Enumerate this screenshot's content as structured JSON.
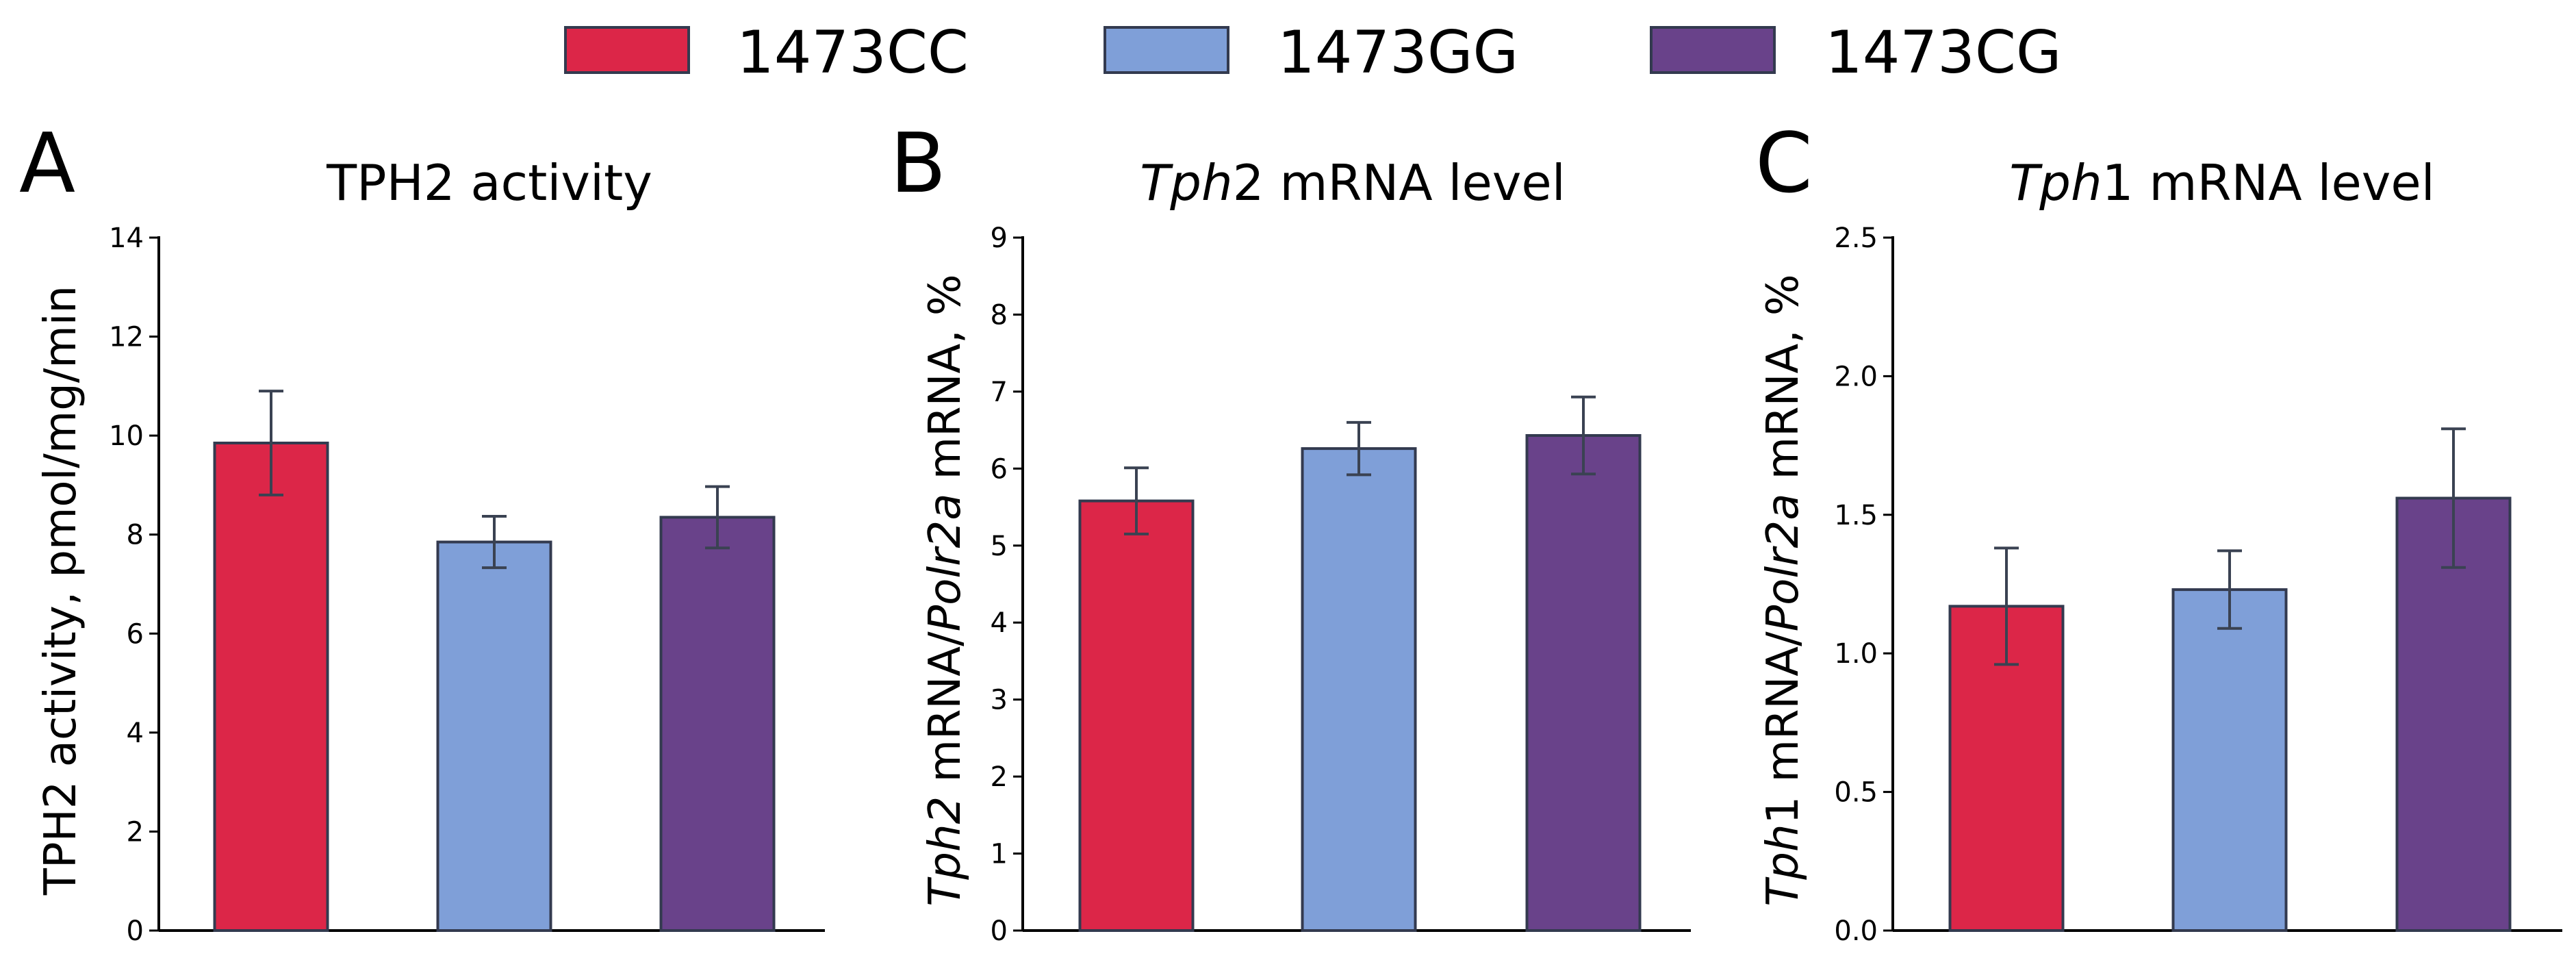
{
  "legend": [
    {
      "label": "1473CC",
      "color": "#dc2648"
    },
    {
      "label": "1473GG",
      "color": "#7f9fd8"
    },
    {
      "label": "1473CG",
      "color": "#69428a"
    }
  ],
  "chart_data": [
    {
      "type": "bar",
      "panel": "A",
      "title": "TPH2 activity",
      "ylabel": "TPH2 activity, pmol/mg/min",
      "ylim": [
        0,
        14
      ],
      "yticks": [
        0,
        2,
        4,
        6,
        8,
        10,
        12,
        14
      ],
      "categories": [
        "1473CC",
        "1473GG",
        "1473CG"
      ],
      "values": [
        9.85,
        7.85,
        8.35
      ],
      "errors": [
        1.05,
        0.52,
        0.62
      ],
      "colors": [
        "#dc2648",
        "#7f9fd8",
        "#69428a"
      ]
    },
    {
      "type": "bar",
      "panel": "B",
      "title": "Tph2 mRNA level",
      "ylabel": "Tph2 mRNA/Polr2a mRNA, %",
      "ylim": [
        0,
        9
      ],
      "yticks": [
        0,
        1,
        2,
        3,
        4,
        5,
        6,
        7,
        8,
        9
      ],
      "categories": [
        "1473CC",
        "1473GG",
        "1473CG"
      ],
      "values": [
        5.58,
        6.26,
        6.43
      ],
      "errors": [
        0.43,
        0.34,
        0.5
      ],
      "colors": [
        "#dc2648",
        "#7f9fd8",
        "#69428a"
      ]
    },
    {
      "type": "bar",
      "panel": "C",
      "title": "Tph1 mRNA level",
      "ylabel": "Tph1 mRNA/Polr2a mRNA, %",
      "ylim": [
        0,
        2.5
      ],
      "yticks": [
        "0.0",
        "0.5",
        "1.0",
        "1.5",
        "2.0",
        "2.5"
      ],
      "categories": [
        "1473CC",
        "1473GG",
        "1473CG"
      ],
      "values": [
        1.17,
        1.23,
        1.56
      ],
      "errors": [
        0.21,
        0.14,
        0.25
      ],
      "colors": [
        "#dc2648",
        "#7f9fd8",
        "#69428a"
      ]
    }
  ]
}
